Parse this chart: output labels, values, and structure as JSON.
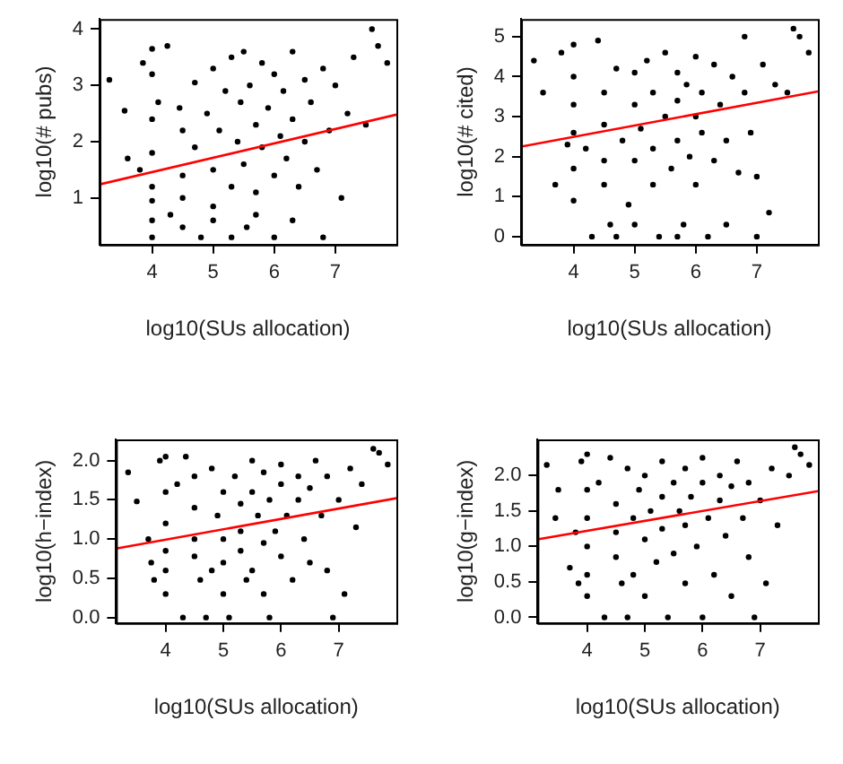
{
  "chart_data": [
    {
      "type": "scatter",
      "xlabel": "log10(SUs allocation)",
      "ylabel": "log10(# pubs)",
      "xlim": [
        3.14,
        8.0
      ],
      "xticks": [
        4,
        5,
        6,
        7
      ],
      "ylim": [
        0.17,
        4.18
      ],
      "yticks": [
        1,
        2,
        3,
        4
      ],
      "grid": false,
      "marker": "circle",
      "series": [
        {
          "color": "#000000",
          "x": [
            3.3,
            3.55,
            3.6,
            3.8,
            3.85,
            4,
            4,
            4,
            4,
            4,
            4,
            4,
            4,
            4.1,
            4.25,
            4.3,
            4.45,
            4.5,
            4.5,
            4.5,
            4.5,
            4.7,
            4.7,
            4.8,
            4.9,
            5,
            5,
            5,
            5,
            5.1,
            5.2,
            5.3,
            5.3,
            5.3,
            5.4,
            5.45,
            5.5,
            5.5,
            5.55,
            5.6,
            5.7,
            5.7,
            5.7,
            5.8,
            5.8,
            5.9,
            6,
            6,
            6,
            6.1,
            6.15,
            6.2,
            6.3,
            6.3,
            6.3,
            6.4,
            6.5,
            6.5,
            6.6,
            6.7,
            6.8,
            6.8,
            6.9,
            7,
            7.1,
            7.2,
            7.3,
            7.5,
            7.6,
            7.7,
            7.85
          ],
          "values": [
            3.1,
            2.55,
            1.7,
            1.5,
            3.4,
            3.65,
            3.2,
            2.4,
            1.8,
            1.2,
            0.95,
            0.6,
            0.3,
            2.7,
            3.7,
            0.7,
            2.6,
            2.2,
            1.4,
            1.0,
            0.48,
            3.05,
            1.9,
            0.3,
            2.5,
            3.3,
            1.5,
            0.85,
            0.6,
            2.2,
            2.9,
            3.5,
            1.2,
            0.3,
            2.0,
            2.7,
            3.6,
            1.6,
            0.48,
            3.0,
            2.3,
            1.1,
            0.7,
            3.4,
            1.9,
            2.6,
            3.2,
            1.4,
            0.3,
            2.1,
            2.9,
            1.7,
            3.6,
            2.4,
            0.6,
            1.2,
            3.1,
            2.0,
            2.7,
            1.5,
            3.3,
            0.3,
            2.2,
            3.0,
            1.0,
            2.5,
            3.5,
            2.3,
            4.0,
            3.7,
            3.4
          ]
        },
        {
          "type": "line",
          "color": "#ff0000",
          "marker": "none",
          "x": [
            3.14,
            8.0
          ],
          "values": [
            1.24,
            2.48
          ]
        }
      ]
    },
    {
      "type": "scatter",
      "xlabel": "log10(SUs allocation)",
      "ylabel": "log10(# cited)",
      "xlim": [
        3.14,
        8.0
      ],
      "xticks": [
        4,
        5,
        6,
        7
      ],
      "ylim": [
        -0.2,
        5.44
      ],
      "yticks": [
        0,
        1,
        2,
        3,
        4,
        5
      ],
      "grid": false,
      "marker": "circle",
      "series": [
        {
          "color": "#000000",
          "x": [
            3.35,
            3.5,
            3.7,
            3.8,
            3.9,
            4,
            4,
            4,
            4,
            4,
            4,
            4.2,
            4.3,
            4.4,
            4.5,
            4.5,
            4.5,
            4.5,
            4.6,
            4.7,
            4.7,
            4.8,
            4.9,
            5,
            5,
            5,
            5,
            5.1,
            5.2,
            5.3,
            5.3,
            5.3,
            5.4,
            5.5,
            5.5,
            5.6,
            5.7,
            5.7,
            5.7,
            5.7,
            5.8,
            5.85,
            5.9,
            6,
            6,
            6,
            6.1,
            6.1,
            6.2,
            6.3,
            6.3,
            6.4,
            6.5,
            6.5,
            6.6,
            6.7,
            6.8,
            6.8,
            6.9,
            7,
            7,
            7.1,
            7.2,
            7.3,
            7.5,
            7.6,
            7.7,
            7.85
          ],
          "values": [
            4.4,
            3.6,
            1.3,
            4.6,
            2.3,
            4.8,
            4.0,
            3.3,
            2.6,
            1.7,
            0.9,
            2.2,
            0,
            4.9,
            3.6,
            2.8,
            1.9,
            1.3,
            0.3,
            4.2,
            0,
            2.4,
            0.8,
            4.1,
            3.3,
            1.9,
            0.3,
            2.7,
            4.4,
            3.6,
            2.2,
            1.3,
            0,
            4.6,
            3.0,
            1.7,
            4.1,
            3.4,
            2.4,
            0,
            0.3,
            3.8,
            2.0,
            4.5,
            3.0,
            1.3,
            3.6,
            2.6,
            0,
            4.3,
            1.9,
            3.3,
            2.4,
            0.3,
            4.0,
            1.6,
            3.6,
            5.0,
            2.6,
            0,
            1.5,
            4.3,
            0.6,
            3.8,
            3.6,
            5.2,
            5.0,
            4.6
          ]
        },
        {
          "type": "line",
          "color": "#ff0000",
          "marker": "none",
          "x": [
            3.14,
            8.0
          ],
          "values": [
            2.25,
            3.63
          ]
        }
      ]
    },
    {
      "type": "scatter",
      "xlabel": "log10(SUs allocation)",
      "ylabel": "log10(h−index)",
      "xlim": [
        3.14,
        8.0
      ],
      "xticks": [
        4,
        5,
        6,
        7
      ],
      "ylim": [
        -0.07,
        2.27
      ],
      "yticks": [
        {
          "value": 0,
          "label": "0.0"
        },
        0.5,
        {
          "value": 1,
          "label": "1.0"
        },
        1.5,
        {
          "value": 2,
          "label": "2.0"
        }
      ],
      "grid": false,
      "marker": "circle",
      "series": [
        {
          "color": "#000000",
          "x": [
            3.35,
            3.5,
            3.7,
            3.75,
            3.8,
            3.9,
            4,
            4,
            4,
            4,
            4,
            4,
            4.2,
            4.3,
            4.35,
            4.5,
            4.5,
            4.5,
            4.5,
            4.6,
            4.7,
            4.8,
            4.8,
            4.9,
            5,
            5,
            5,
            5,
            5.1,
            5.2,
            5.3,
            5.3,
            5.3,
            5.4,
            5.5,
            5.5,
            5.5,
            5.6,
            5.7,
            5.7,
            5.7,
            5.8,
            5.8,
            5.9,
            6,
            6,
            6,
            6.1,
            6.2,
            6.3,
            6.3,
            6.4,
            6.5,
            6.5,
            6.6,
            6.7,
            6.8,
            6.8,
            6.9,
            7,
            7.1,
            7.2,
            7.3,
            7.4,
            7.6,
            7.7,
            7.85
          ],
          "values": [
            1.85,
            1.48,
            1.0,
            0.7,
            0.48,
            2.0,
            2.05,
            1.6,
            1.2,
            0.85,
            0.6,
            0.3,
            1.7,
            0,
            2.05,
            1.8,
            1.4,
            1.0,
            0.78,
            0.48,
            0,
            1.9,
            0.6,
            1.3,
            1.6,
            1.0,
            0.7,
            0.3,
            0,
            1.8,
            1.45,
            1.1,
            0.85,
            0.48,
            2.0,
            1.6,
            0.6,
            1.3,
            1.85,
            0.95,
            0.3,
            1.5,
            0,
            1.1,
            1.95,
            1.7,
            0.78,
            1.3,
            0.48,
            1.8,
            1.5,
            1.0,
            1.65,
            0.7,
            2.0,
            1.3,
            1.8,
            0.6,
            0,
            1.5,
            0.3,
            1.9,
            1.15,
            1.7,
            2.15,
            2.1,
            1.95
          ]
        },
        {
          "type": "line",
          "color": "#ff0000",
          "marker": "none",
          "x": [
            3.14,
            8.0
          ],
          "values": [
            0.88,
            1.52
          ]
        }
      ]
    },
    {
      "type": "scatter",
      "xlabel": "log10(SUs allocation)",
      "ylabel": "log10(g−index)",
      "xlim": [
        3.14,
        8.0
      ],
      "xticks": [
        4,
        5,
        6,
        7
      ],
      "ylim": [
        -0.08,
        2.51
      ],
      "yticks": [
        {
          "value": 0,
          "label": "0.0"
        },
        0.5,
        {
          "value": 1,
          "label": "1.0"
        },
        1.5,
        {
          "value": 2,
          "label": "2.0"
        }
      ],
      "grid": false,
      "marker": "circle",
      "series": [
        {
          "color": "#000000",
          "x": [
            3.3,
            3.45,
            3.5,
            3.7,
            3.8,
            3.85,
            3.9,
            4,
            4,
            4,
            4,
            4,
            4,
            4.2,
            4.3,
            4.4,
            4.5,
            4.5,
            4.5,
            4.6,
            4.7,
            4.7,
            4.8,
            4.8,
            4.9,
            5,
            5,
            5,
            5.1,
            5.2,
            5.3,
            5.3,
            5.3,
            5.4,
            5.5,
            5.5,
            5.6,
            5.7,
            5.7,
            5.7,
            5.8,
            5.9,
            6,
            6,
            6,
            6.1,
            6.2,
            6.3,
            6.3,
            6.4,
            6.5,
            6.5,
            6.6,
            6.7,
            6.8,
            6.8,
            6.9,
            7,
            7.1,
            7.2,
            7.3,
            7.5,
            7.6,
            7.7,
            7.85
          ],
          "values": [
            2.15,
            1.4,
            1.8,
            0.7,
            1.2,
            0.48,
            2.2,
            2.3,
            1.8,
            1.4,
            1.0,
            0.6,
            0.3,
            1.9,
            0,
            2.25,
            1.6,
            1.2,
            0.85,
            0.48,
            2.1,
            0,
            1.4,
            0.6,
            1.8,
            2.0,
            1.1,
            0.3,
            1.5,
            0.78,
            2.2,
            1.7,
            1.25,
            0,
            1.9,
            0.9,
            1.5,
            2.1,
            1.3,
            0.48,
            1.7,
            1.0,
            2.25,
            1.9,
            0,
            1.4,
            0.6,
            2.0,
            1.65,
            1.15,
            1.85,
            0.3,
            2.2,
            1.4,
            1.9,
            0.85,
            0,
            1.65,
            0.48,
            2.1,
            1.3,
            2.0,
            2.4,
            2.3,
            2.15
          ]
        },
        {
          "type": "line",
          "color": "#ff0000",
          "marker": "none",
          "x": [
            3.14,
            8.0
          ],
          "values": [
            1.1,
            1.78
          ]
        }
      ]
    }
  ]
}
